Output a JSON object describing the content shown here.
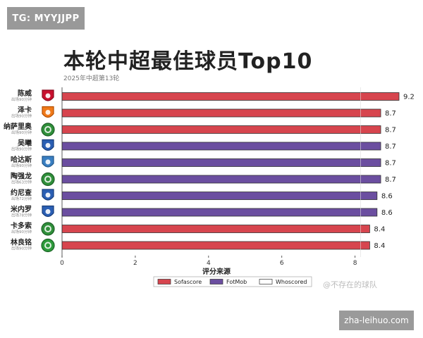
{
  "badges": {
    "tg": "TG: MYYJJPP",
    "site": "zha-leihuo.com"
  },
  "watermark": "@不存在的球队",
  "colors": {
    "sofascore": "#d7454e",
    "fotmob": "#6b4ea0",
    "whoscored": "#ffffff"
  },
  "chart_data": {
    "type": "bar",
    "orientation": "horizontal",
    "title": "本轮中超最佳球员Top10",
    "subtitle": "2025年中超第13轮",
    "xlabel": "评分来源",
    "xlim": [
      0,
      9.2
    ],
    "xticks": [
      0,
      2,
      4,
      6,
      8
    ],
    "grid": false,
    "legend": {
      "placement": "bottom",
      "entries": [
        "Sofascore",
        "FotMob",
        "Whoscored"
      ]
    },
    "rows": [
      {
        "name": "陈威",
        "sub": "出场90分钟",
        "value": 9.2,
        "source": "Sofascore",
        "badge": "shanghai-port"
      },
      {
        "name": "泽卡",
        "sub": "出场90分钟",
        "value": 8.7,
        "source": "Sofascore",
        "badge": "shandong-taishan"
      },
      {
        "name": "纳萨里奥",
        "sub": "出场90分钟",
        "value": 8.7,
        "source": "Sofascore",
        "badge": "zhejiang"
      },
      {
        "name": "吴曦",
        "sub": "出场90分钟",
        "value": 8.7,
        "source": "FotMob",
        "badge": "shanghai-shenhua"
      },
      {
        "name": "哈达斯",
        "sub": "出场90分钟",
        "value": 8.7,
        "source": "FotMob",
        "badge": "qingdao"
      },
      {
        "name": "陶强龙",
        "sub": "出场63分钟",
        "value": 8.7,
        "source": "FotMob",
        "badge": "zhejiang"
      },
      {
        "name": "约尼查",
        "sub": "出场72分钟",
        "value": 8.6,
        "source": "FotMob",
        "badge": "shanghai-shenhua"
      },
      {
        "name": "米内罗",
        "sub": "出场78分钟",
        "value": 8.6,
        "source": "FotMob",
        "badge": "shanghai-shenhua"
      },
      {
        "name": "卡多索",
        "sub": "出场90分钟",
        "value": 8.4,
        "source": "Sofascore",
        "badge": "zhejiang"
      },
      {
        "name": "林良铭",
        "sub": "出场90分钟",
        "value": 8.4,
        "source": "Sofascore",
        "badge": "beijing-guoan"
      }
    ]
  }
}
